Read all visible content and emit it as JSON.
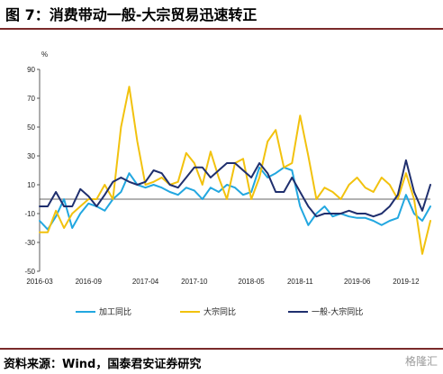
{
  "header": {
    "title": "图 7：消费带动一般-大宗贸易迅速转正"
  },
  "footer": {
    "source": "资料来源：Wind，国泰君安证券研究",
    "watermark": "格隆汇"
  },
  "chart_data": {
    "type": "line",
    "yunit": "%",
    "ylim": [
      -50,
      90
    ],
    "yticks": [
      90,
      70,
      50,
      30,
      10,
      -10,
      -30,
      -50
    ],
    "xtick_labels": [
      "2016-03",
      "2016-09",
      "2017-04",
      "2017-10",
      "2018-05",
      "2018-11",
      "2019-06",
      "2019-12"
    ],
    "xtick_index": [
      0,
      6,
      13,
      19,
      26,
      32,
      39,
      45
    ],
    "legend": [
      "加工同比",
      "大宗同比",
      "一般-大宗同比"
    ],
    "series": [
      {
        "name": "加工同比",
        "color": "#22a7e0",
        "values": [
          -15,
          -21,
          -12,
          0,
          -20,
          -10,
          -3,
          -5,
          -8,
          0,
          5,
          18,
          10,
          8,
          10,
          8,
          5,
          3,
          8,
          6,
          0,
          8,
          5,
          10,
          8,
          3,
          5,
          22,
          15,
          18,
          22,
          20,
          -5,
          -18,
          -10,
          -5,
          -12,
          -10,
          -12,
          -13,
          -13,
          -15,
          -18,
          -15,
          -13,
          3,
          -10,
          -15,
          -5
        ]
      },
      {
        "name": "大宗同比",
        "color": "#f2c20e",
        "values": [
          -23,
          -23,
          -8,
          -20,
          -10,
          -5,
          0,
          0,
          10,
          0,
          50,
          78,
          40,
          10,
          12,
          15,
          10,
          12,
          32,
          25,
          10,
          33,
          15,
          0,
          25,
          28,
          0,
          15,
          40,
          48,
          22,
          25,
          58,
          30,
          0,
          8,
          5,
          0,
          10,
          15,
          8,
          5,
          15,
          10,
          0,
          18,
          0,
          -38,
          -15
        ]
      },
      {
        "name": "一般-大宗同比",
        "color": "#1f2f6e",
        "values": [
          -5,
          -5,
          5,
          -5,
          -5,
          7,
          2,
          -5,
          3,
          12,
          15,
          12,
          10,
          12,
          20,
          18,
          10,
          8,
          15,
          22,
          22,
          15,
          20,
          25,
          25,
          20,
          15,
          25,
          18,
          5,
          5,
          15,
          5,
          -5,
          -12,
          -10,
          -10,
          -10,
          -8,
          -10,
          -10,
          -12,
          -10,
          -5,
          3,
          27,
          5,
          -8,
          10
        ]
      }
    ]
  }
}
